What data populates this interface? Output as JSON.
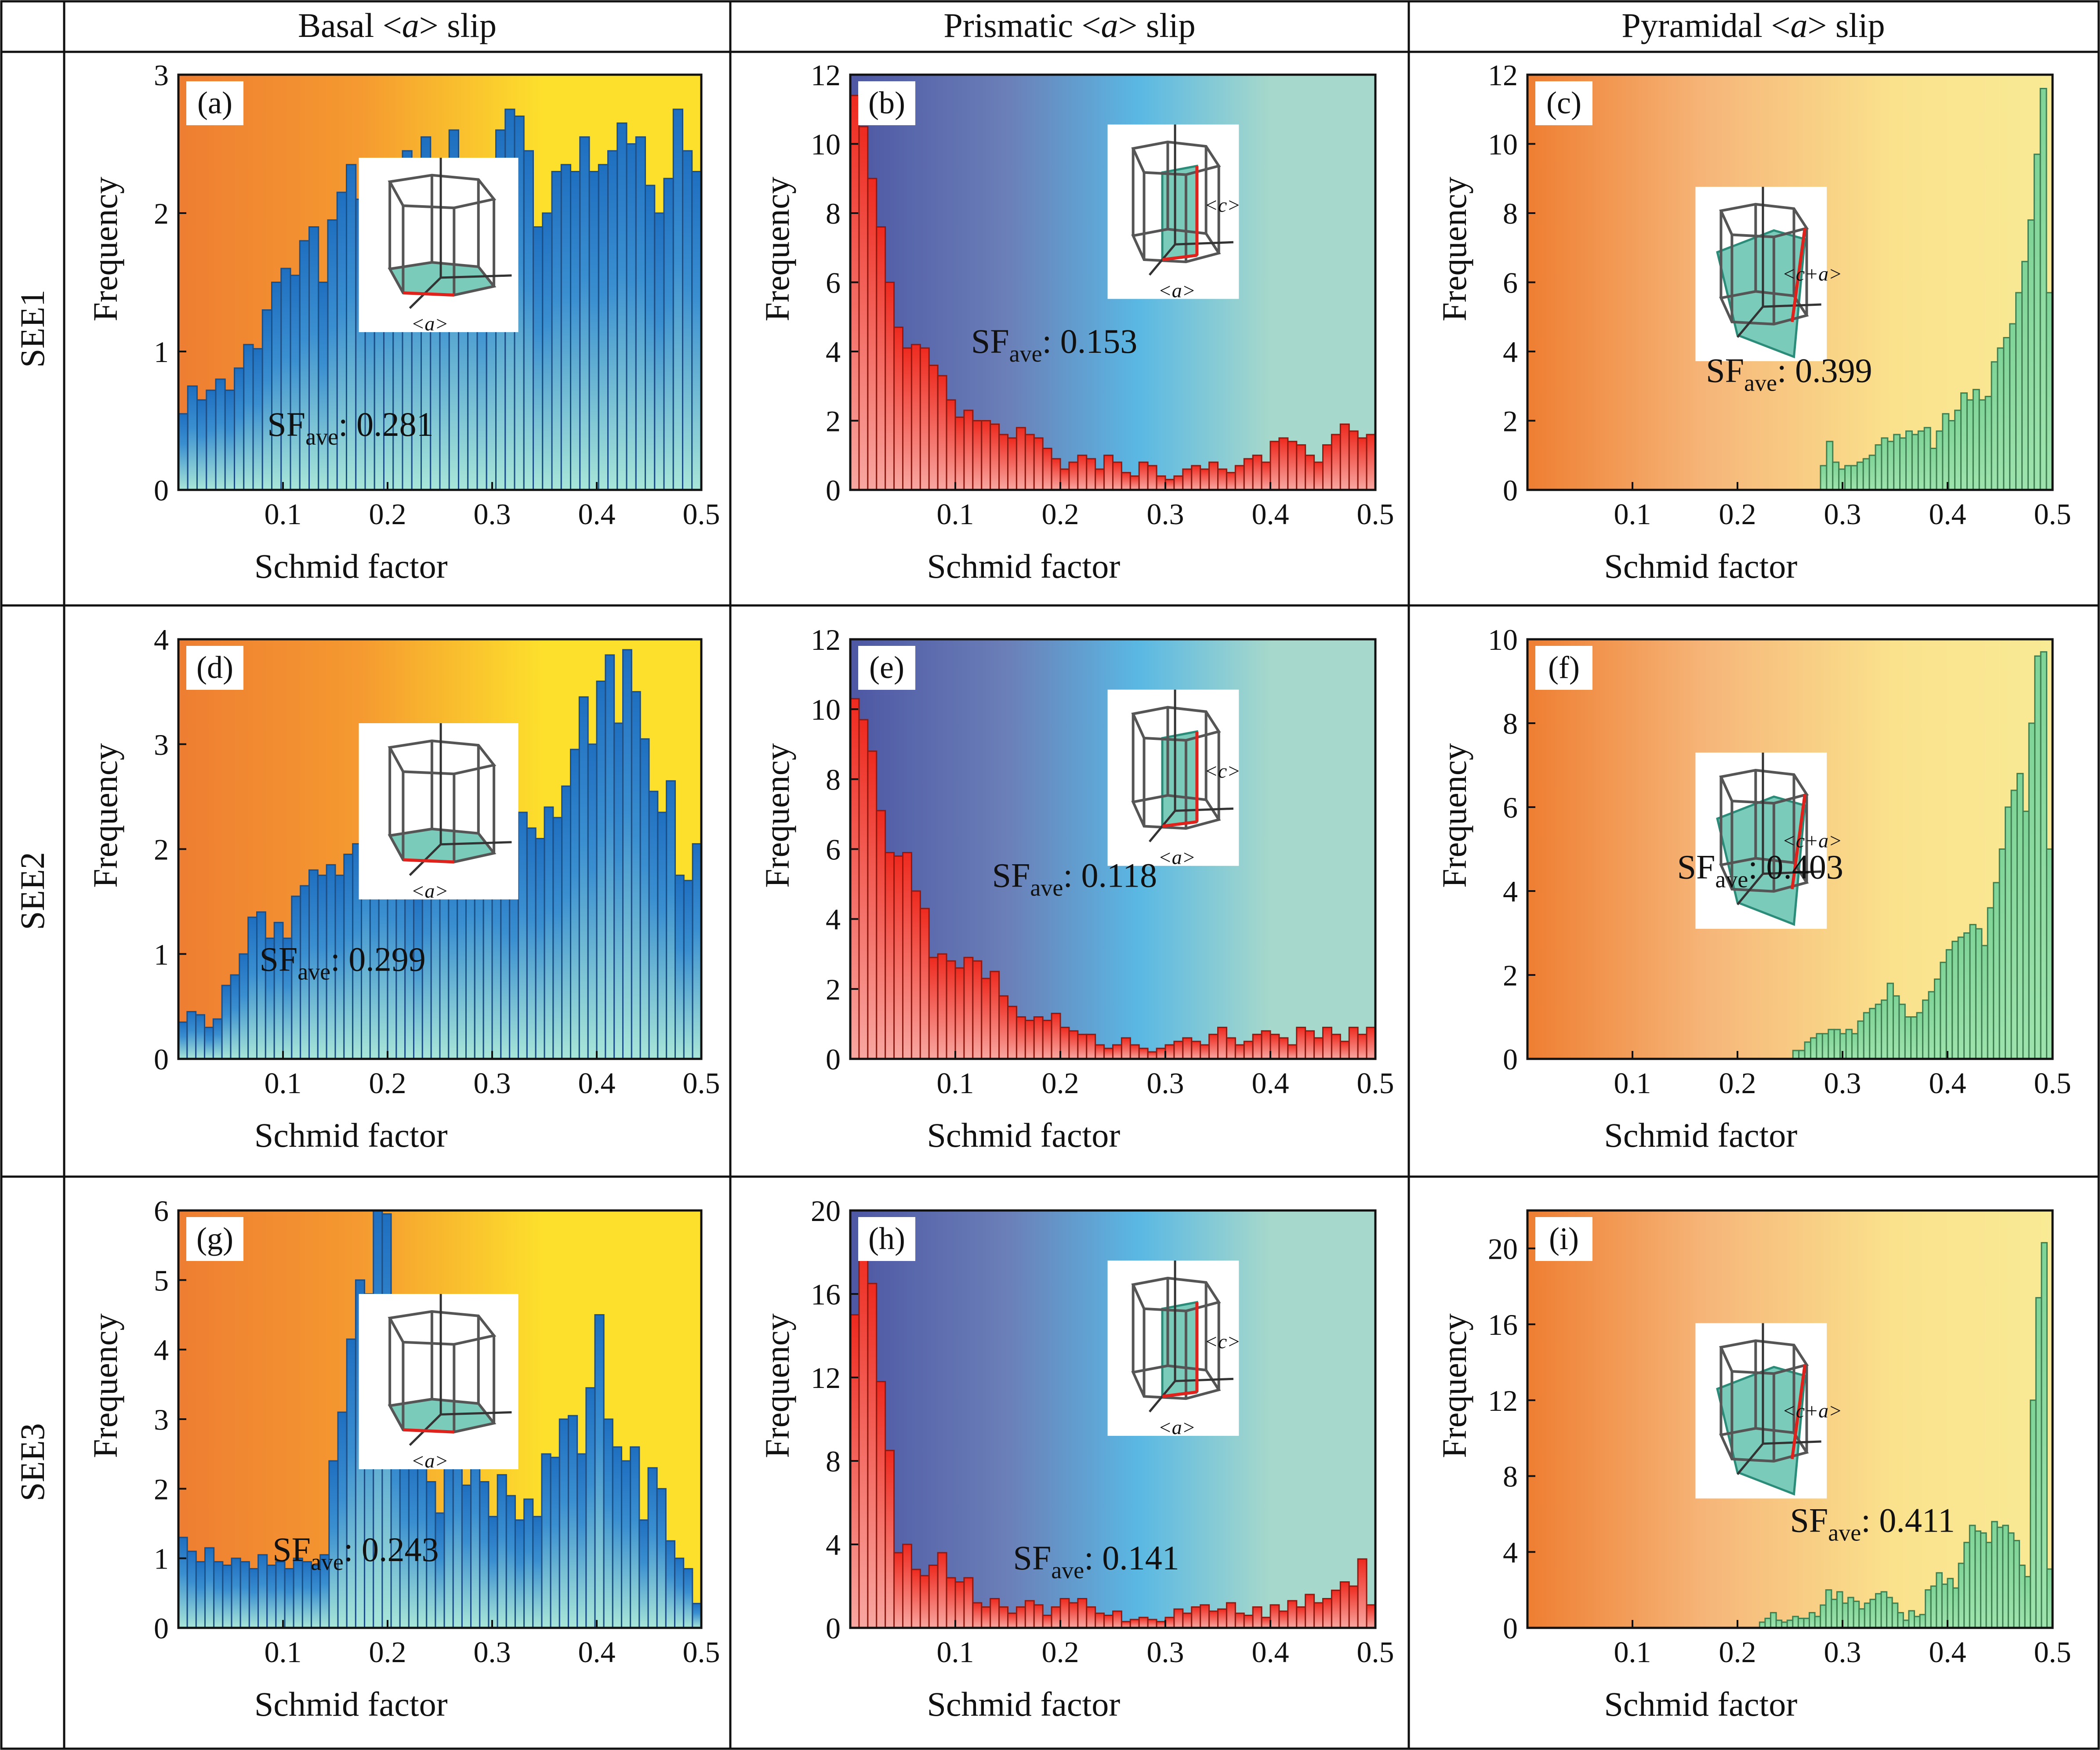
{
  "figure": {
    "column_headers": [
      {
        "pre": "Basal <",
        "it": "a",
        "post": "> slip"
      },
      {
        "pre": "Prismatic <",
        "it": "a",
        "post": "> slip"
      },
      {
        "pre": "Pyramidal <",
        "it": "a",
        "post": "> slip"
      }
    ],
    "row_headers": [
      "SEE1",
      "SEE2",
      "SEE3"
    ],
    "xlabel": "Schmid factor",
    "ylabel": "Frequency",
    "sf_label": {
      "main": "SF",
      "sub": "ave",
      "sep": ": "
    }
  },
  "colors": {
    "orange": "#ee7e32",
    "yellow": "#fde02c",
    "pale_yellow": "#f9ea95",
    "navy": "#4d57a3",
    "sky": "#5ab8e3",
    "mint": "#a6d8cb",
    "blue_bar_top": "#1f6fc0",
    "teal_bar_bottom": "#a8e6d8",
    "red_bar_top": "#ee2a1f",
    "red_bar_bottom": "#f8a7a1",
    "green_bar": "#9ee3ad",
    "inset_face": "#63c2ad",
    "inset_vector": "#e0221c"
  },
  "chart_data": [
    {
      "id": "a",
      "type": "bar",
      "panel_label": "(a)",
      "slip": "basal",
      "bar_style": "blue",
      "bg": "orange_yellow",
      "ylim": [
        0,
        3
      ],
      "yticks": [
        "0",
        "1",
        "2",
        "3"
      ],
      "xticks": [
        "0.1",
        "0.2",
        "0.3",
        "0.4",
        "0.5"
      ],
      "xlim": [
        0,
        0.5
      ],
      "sf_ave": "0.281",
      "inset_vector": "<a>",
      "values": [
        0.55,
        0.75,
        0.65,
        0.72,
        0.8,
        0.72,
        0.88,
        1.05,
        1.02,
        1.3,
        1.5,
        1.6,
        1.55,
        1.8,
        1.9,
        1.5,
        1.95,
        2.15,
        2.35,
        2.1,
        2.0,
        2.1,
        2.15,
        2.25,
        2.45,
        2.35,
        2.55,
        2.3,
        2.15,
        2.6,
        2.3,
        2.35,
        2.0,
        2.3,
        2.6,
        2.75,
        2.7,
        2.45,
        1.9,
        2.0,
        2.3,
        2.35,
        2.3,
        2.55,
        2.3,
        2.35,
        2.45,
        2.65,
        2.5,
        2.55,
        2.2,
        2.0,
        2.25,
        2.75,
        2.45,
        2.3
      ]
    },
    {
      "id": "b",
      "type": "bar",
      "panel_label": "(b)",
      "slip": "prismatic",
      "bar_style": "red",
      "bg": "navy_mint",
      "ylim": [
        0,
        12
      ],
      "yticks": [
        "0",
        "2",
        "4",
        "6",
        "8",
        "10",
        "12"
      ],
      "xticks": [
        "0.1",
        "0.2",
        "0.3",
        "0.4",
        "0.5"
      ],
      "xlim": [
        0,
        0.5
      ],
      "sf_ave": "0.153",
      "inset_vector": "<c>",
      "inset_vector2": "<a>",
      "values": [
        11.4,
        10.5,
        9.0,
        7.6,
        6.0,
        4.7,
        4.1,
        4.2,
        4.1,
        3.6,
        3.3,
        2.6,
        2.1,
        2.3,
        2.0,
        2.0,
        1.9,
        1.6,
        1.5,
        1.8,
        1.6,
        1.5,
        1.2,
        0.9,
        0.6,
        0.8,
        1.0,
        0.9,
        0.6,
        1.0,
        0.8,
        0.5,
        0.4,
        0.8,
        0.7,
        0.4,
        0.3,
        0.4,
        0.6,
        0.7,
        0.6,
        0.8,
        0.6,
        0.5,
        0.7,
        0.9,
        1.0,
        0.8,
        1.4,
        1.5,
        1.4,
        1.3,
        1.0,
        0.8,
        1.3,
        1.6,
        1.9,
        1.7,
        1.5,
        1.6
      ]
    },
    {
      "id": "c",
      "type": "bar",
      "panel_label": "(c)",
      "slip": "pyramidal",
      "bar_style": "green",
      "bg": "orange_paleyellow",
      "ylim": [
        0,
        12
      ],
      "yticks": [
        "0",
        "2",
        "4",
        "6",
        "8",
        "10",
        "12"
      ],
      "xticks": [
        "0.1",
        "0.2",
        "0.3",
        "0.4",
        "0.5"
      ],
      "xlim": [
        0,
        0.5
      ],
      "sf_ave": "0.399",
      "inset_vector": "<c+a>",
      "values": [
        0,
        0,
        0,
        0,
        0,
        0,
        0,
        0,
        0,
        0,
        0,
        0,
        0,
        0,
        0,
        0,
        0,
        0,
        0,
        0,
        0,
        0,
        0,
        0,
        0,
        0,
        0,
        0,
        0,
        0,
        0,
        0,
        0,
        0,
        0,
        0,
        0,
        0,
        0,
        0,
        0,
        0,
        0,
        0,
        0,
        0,
        0,
        0,
        0.7,
        1.4,
        0.8,
        0.6,
        0.7,
        0.7,
        0.8,
        0.9,
        1.0,
        1.3,
        1.5,
        1.4,
        1.6,
        1.5,
        1.7,
        1.6,
        1.7,
        1.8,
        1.2,
        1.7,
        2.2,
        2.0,
        2.3,
        2.8,
        2.6,
        2.9,
        2.6,
        2.7,
        3.7,
        4.1,
        4.4,
        4.8,
        5.7,
        6.6,
        7.8,
        9.7,
        11.6,
        5.7
      ]
    },
    {
      "id": "d",
      "type": "bar",
      "panel_label": "(d)",
      "slip": "basal",
      "bar_style": "blue",
      "bg": "orange_yellow",
      "ylim": [
        0,
        4
      ],
      "yticks": [
        "0",
        "1",
        "2",
        "3",
        "4"
      ],
      "xticks": [
        "0.1",
        "0.2",
        "0.3",
        "0.4",
        "0.5"
      ],
      "xlim": [
        0,
        0.5
      ],
      "sf_ave": "0.299",
      "inset_vector": "<a>",
      "values": [
        0.35,
        0.45,
        0.42,
        0.3,
        0.38,
        0.7,
        0.8,
        1.0,
        1.35,
        1.4,
        1.15,
        1.3,
        1.15,
        1.55,
        1.65,
        1.8,
        1.75,
        1.85,
        1.75,
        1.95,
        2.05,
        2.4,
        2.05,
        2.3,
        2.2,
        2.1,
        1.85,
        1.6,
        2.0,
        2.3,
        2.25,
        2.1,
        2.15,
        2.3,
        2.25,
        2.4,
        2.15,
        2.0,
        1.9,
        2.35,
        2.2,
        2.1,
        2.4,
        2.3,
        2.6,
        2.95,
        3.45,
        3.0,
        3.6,
        3.85,
        3.2,
        3.9,
        3.5,
        3.05,
        2.55,
        2.35,
        2.65,
        1.75,
        1.7,
        2.05
      ]
    },
    {
      "id": "e",
      "type": "bar",
      "panel_label": "(e)",
      "slip": "prismatic",
      "bar_style": "red",
      "bg": "navy_mint",
      "ylim": [
        0,
        12
      ],
      "yticks": [
        "0",
        "2",
        "4",
        "6",
        "8",
        "10",
        "12"
      ],
      "xticks": [
        "0.1",
        "0.2",
        "0.3",
        "0.4",
        "0.5"
      ],
      "xlim": [
        0,
        0.5
      ],
      "sf_ave": "0.118",
      "inset_vector": "<c>",
      "inset_vector2": "<a>",
      "values": [
        10.3,
        9.7,
        8.8,
        7.1,
        5.9,
        5.8,
        5.9,
        4.8,
        4.3,
        2.9,
        3.0,
        2.8,
        2.6,
        2.9,
        2.8,
        2.3,
        2.5,
        1.8,
        1.5,
        1.2,
        1.1,
        1.2,
        1.1,
        1.3,
        0.9,
        0.8,
        0.7,
        0.7,
        0.4,
        0.3,
        0.4,
        0.6,
        0.4,
        0.3,
        0.2,
        0.3,
        0.4,
        0.5,
        0.6,
        0.5,
        0.4,
        0.7,
        0.9,
        0.6,
        0.4,
        0.5,
        0.7,
        0.8,
        0.7,
        0.6,
        0.4,
        0.9,
        0.8,
        0.6,
        0.9,
        0.7,
        0.5,
        0.9,
        0.7,
        0.9
      ]
    },
    {
      "id": "f",
      "type": "bar",
      "panel_label": "(f)",
      "slip": "pyramidal",
      "bar_style": "green",
      "bg": "orange_paleyellow",
      "ylim": [
        0,
        10
      ],
      "yticks": [
        "0",
        "2",
        "4",
        "6",
        "8",
        "10"
      ],
      "xticks": [
        "0.1",
        "0.2",
        "0.3",
        "0.4",
        "0.5"
      ],
      "xlim": [
        0,
        0.5
      ],
      "sf_ave": "0.403",
      "inset_vector": "<c+a>",
      "values": [
        0,
        0,
        0,
        0,
        0,
        0,
        0,
        0,
        0,
        0,
        0,
        0,
        0,
        0,
        0,
        0,
        0,
        0,
        0,
        0,
        0,
        0,
        0,
        0,
        0,
        0,
        0,
        0,
        0,
        0,
        0,
        0,
        0,
        0,
        0,
        0,
        0,
        0,
        0,
        0,
        0,
        0,
        0,
        0,
        0,
        0.2,
        0.2,
        0.4,
        0.5,
        0.6,
        0.6,
        0.7,
        0.7,
        0.6,
        0.7,
        0.6,
        0.9,
        1.1,
        1.2,
        1.3,
        1.4,
        1.8,
        1.5,
        1.3,
        1.0,
        1.0,
        1.1,
        1.4,
        1.6,
        1.9,
        2.3,
        2.6,
        2.8,
        2.9,
        3.0,
        3.2,
        3.1,
        2.7,
        3.6,
        4.2,
        5.0,
        6.0,
        6.4,
        6.8,
        5.9,
        8.0,
        9.6,
        9.7,
        5.0
      ]
    },
    {
      "id": "g",
      "type": "bar",
      "panel_label": "(g)",
      "slip": "basal",
      "bar_style": "blue",
      "bg": "orange_yellow",
      "ylim": [
        0,
        6
      ],
      "yticks": [
        "0",
        "1",
        "2",
        "3",
        "4",
        "5",
        "6"
      ],
      "xticks": [
        "0.1",
        "0.2",
        "0.3",
        "0.4",
        "0.5"
      ],
      "xlim": [
        0,
        0.5
      ],
      "sf_ave": "0.243",
      "inset_vector": "<a>",
      "values": [
        1.3,
        1.1,
        0.95,
        1.15,
        0.95,
        0.9,
        1.0,
        0.95,
        0.85,
        1.05,
        0.9,
        0.95,
        0.85,
        1.0,
        0.95,
        0.9,
        1.05,
        2.4,
        3.1,
        4.15,
        5.0,
        4.8,
        6.0,
        5.95,
        3.5,
        2.6,
        2.5,
        2.6,
        2.1,
        1.65,
        2.55,
        2.8,
        2.05,
        2.75,
        2.1,
        1.6,
        2.2,
        1.9,
        1.55,
        1.85,
        1.6,
        2.5,
        2.45,
        3.0,
        3.05,
        2.5,
        3.45,
        4.5,
        3.0,
        2.6,
        2.4,
        2.6,
        1.55,
        2.3,
        2.0,
        1.25,
        1.0,
        0.85,
        0.35
      ]
    },
    {
      "id": "h",
      "type": "bar",
      "panel_label": "(h)",
      "slip": "prismatic",
      "bar_style": "red",
      "bg": "navy_mint",
      "ylim": [
        0,
        20
      ],
      "yticks": [
        "0",
        "4",
        "8",
        "12",
        "16",
        "20"
      ],
      "xticks": [
        "0.1",
        "0.2",
        "0.3",
        "0.4",
        "0.5"
      ],
      "xlim": [
        0,
        0.5
      ],
      "sf_ave": "0.141",
      "inset_vector": "<c>",
      "inset_vector2": "<a>",
      "values": [
        15.0,
        18.5,
        16.5,
        11.8,
        8.5,
        3.6,
        4.0,
        2.8,
        2.5,
        3.0,
        3.6,
        2.4,
        2.2,
        2.4,
        1.2,
        1.0,
        1.4,
        1.0,
        0.7,
        1.0,
        1.3,
        1.1,
        0.6,
        1.0,
        1.4,
        1.2,
        1.4,
        1.0,
        0.7,
        0.6,
        0.8,
        0.3,
        0.4,
        0.5,
        0.4,
        0.3,
        0.5,
        0.9,
        0.7,
        1.0,
        1.1,
        0.8,
        0.9,
        1.2,
        0.7,
        0.6,
        1.0,
        0.5,
        1.1,
        0.8,
        1.3,
        1.0,
        1.6,
        1.2,
        1.4,
        1.8,
        2.2,
        2.0,
        3.3,
        1.1
      ]
    },
    {
      "id": "i",
      "type": "bar",
      "panel_label": "(i)",
      "slip": "pyramidal",
      "bar_style": "green",
      "bg": "orange_paleyellow",
      "ylim": [
        0,
        22
      ],
      "yticks": [
        "0",
        "4",
        "8",
        "12",
        "16",
        "20"
      ],
      "xticks": [
        "0.1",
        "0.2",
        "0.3",
        "0.4",
        "0.5"
      ],
      "xlim": [
        0,
        0.5
      ],
      "sf_ave": "0.411",
      "inset_vector": "<c+a>",
      "values": [
        0,
        0,
        0,
        0,
        0,
        0,
        0,
        0,
        0,
        0,
        0,
        0,
        0,
        0,
        0,
        0,
        0,
        0,
        0,
        0,
        0,
        0,
        0,
        0,
        0,
        0,
        0,
        0,
        0,
        0,
        0,
        0,
        0,
        0,
        0,
        0,
        0,
        0,
        0,
        0,
        0,
        0,
        0.3,
        0.5,
        0.8,
        0.4,
        0.3,
        0.4,
        0.6,
        0.5,
        0.5,
        0.8,
        0.6,
        1.2,
        2.0,
        1.5,
        1.9,
        1.3,
        1.6,
        1.4,
        1.0,
        1.3,
        1.5,
        1.8,
        1.9,
        1.6,
        1.3,
        0.8,
        0.4,
        0.9,
        0.6,
        0.7,
        2.0,
        2.2,
        2.9,
        2.3,
        2.6,
        2.1,
        3.4,
        4.5,
        5.4,
        5.1,
        5.0,
        4.5,
        5.6,
        5.3,
        5.4,
        5.0,
        4.6,
        3.3,
        2.7,
        12.0,
        17.4,
        20.3,
        3.1
      ]
    }
  ]
}
